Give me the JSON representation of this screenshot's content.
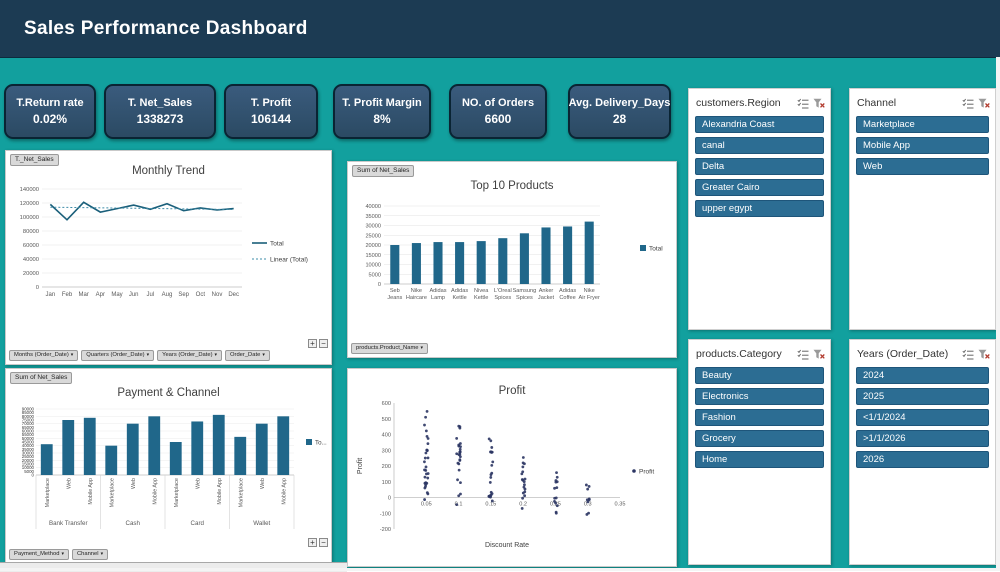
{
  "colors": {
    "background_teal": "#12A09E",
    "header_navy": "#1C3B53",
    "kpi_fill": "#30506A",
    "kpi_border": "#0A2433",
    "slicer_item": "#2C6D93",
    "bar": "#20678A",
    "line_total": "#1A5F7A",
    "line_trend": "#3E8CA8",
    "scatter_point": "#2B3563",
    "axis_text": "#595959"
  },
  "header": {
    "title": "Sales Performance Dashboard"
  },
  "kpis": [
    {
      "label": "T.Return rate",
      "value": "0.02%"
    },
    {
      "label": "T. Net_Sales",
      "value": "1338273"
    },
    {
      "label": "T. Profit",
      "value": "106144"
    },
    {
      "label": "T. Profit Margin",
      "value": "8%"
    },
    {
      "label": "NO. of Orders",
      "value": "6600"
    },
    {
      "label": "Avg. Delivery_Days",
      "value": "28"
    }
  ],
  "slicers": [
    {
      "title": "customers.Region",
      "items": [
        "Alexandria Coast",
        "canal",
        "Delta",
        "Greater Cairo",
        "upper egypt"
      ]
    },
    {
      "title": "Channel",
      "items": [
        "Marketplace",
        "Mobile App",
        "Web"
      ]
    },
    {
      "title": "products.Category",
      "items": [
        "Beauty",
        "Electronics",
        "Fashion",
        "Grocery",
        "Home"
      ]
    },
    {
      "title": "Years (Order_Date)",
      "items": [
        "2024",
        "2025",
        "<1/1/2024",
        ">1/1/2026",
        "2026"
      ]
    }
  ],
  "pivot_ui": {
    "line": {
      "field_button": "T._Net_Sales",
      "filter_buttons": [
        "Months (Order_Date)",
        "Quarters (Order_Date)",
        "Years (Order_Date)",
        "Order_Date"
      ]
    },
    "top_products": {
      "field_button": "Sum of Net_Sales",
      "filter_buttons": [
        "products.Product_Name"
      ]
    },
    "payment": {
      "field_button": "Sum of Net_Sales",
      "filter_buttons": [
        "Payment_Method",
        "Channel"
      ]
    },
    "expand_label": "+",
    "collapse_label": "−"
  },
  "chart_data": [
    {
      "id": "monthly_trend",
      "type": "line",
      "title": "Monthly Trend",
      "categories": [
        "Jan",
        "Feb",
        "Mar",
        "Apr",
        "May",
        "Jun",
        "Jul",
        "Aug",
        "Sep",
        "Oct",
        "Nov",
        "Dec"
      ],
      "series": [
        {
          "name": "Total",
          "style": "solid",
          "values": [
            118000,
            96000,
            121000,
            107000,
            112000,
            117000,
            111000,
            119000,
            109000,
            113000,
            110000,
            112000
          ]
        },
        {
          "name": "Linear (Total)",
          "style": "dotted",
          "values": [
            114000,
            113700,
            113400,
            113100,
            112800,
            112500,
            112200,
            111900,
            111600,
            111300,
            111000,
            110700
          ]
        }
      ],
      "ylim": [
        0,
        140000
      ],
      "ytick_step": 20000,
      "legend_position": "right",
      "grid": true
    },
    {
      "id": "top_10_products",
      "type": "bar",
      "title": "Top 10 Products",
      "categories": [
        "Seb Jeans",
        "Nike Haircare",
        "Adidas Lamp",
        "Adidas Kettle",
        "Nivea Kettle",
        "L'Oreal Spices",
        "Samsung Spices",
        "Anker Jacket",
        "Adidas Coffee",
        "Nike Air Fryer"
      ],
      "values": [
        20000,
        21000,
        21500,
        21500,
        22000,
        23500,
        26000,
        29000,
        29500,
        32000
      ],
      "series_name": "Total",
      "ylim": [
        0,
        40000
      ],
      "ytick_step": 5000,
      "legend_position": "right",
      "grid": true
    },
    {
      "id": "payment_and_channel",
      "type": "grouped-bar",
      "title": "Payment & Channel",
      "groups": [
        "Bank Transfer",
        "Cash",
        "Card",
        "Wallet"
      ],
      "bar_labels": [
        "Marketplace",
        "Web",
        "Mobile App"
      ],
      "series_name": "Total",
      "legend_label": "To...",
      "values": [
        [
          42000,
          75000,
          78000
        ],
        [
          40000,
          70000,
          80000
        ],
        [
          45000,
          73000,
          82000
        ],
        [
          52000,
          70000,
          80000
        ]
      ],
      "ylim": [
        0,
        90000
      ],
      "ytick_step": 5000,
      "gridline_every": 10000,
      "legend_position": "right"
    },
    {
      "id": "profit_scatter",
      "type": "scatter",
      "title": "Profit",
      "xlabel": "Discount Rate",
      "ylabel": "Profit",
      "legend_label": "Profit",
      "xlim": [
        0,
        0.35
      ],
      "xticks": [
        0.05,
        0.1,
        0.15,
        0.2,
        0.25,
        0.3,
        0.35
      ],
      "ylim": [
        -200,
        600
      ],
      "ytick_step": 100,
      "clusters": [
        {
          "x": 0.05,
          "y_min": -20,
          "y_max": 560,
          "count": 30
        },
        {
          "x": 0.1,
          "y_min": -50,
          "y_max": 470,
          "count": 26
        },
        {
          "x": 0.15,
          "y_min": -70,
          "y_max": 380,
          "count": 22
        },
        {
          "x": 0.2,
          "y_min": -100,
          "y_max": 280,
          "count": 18
        },
        {
          "x": 0.25,
          "y_min": -120,
          "y_max": 180,
          "count": 14
        },
        {
          "x": 0.3,
          "y_min": -130,
          "y_max": 90,
          "count": 9
        }
      ]
    }
  ]
}
